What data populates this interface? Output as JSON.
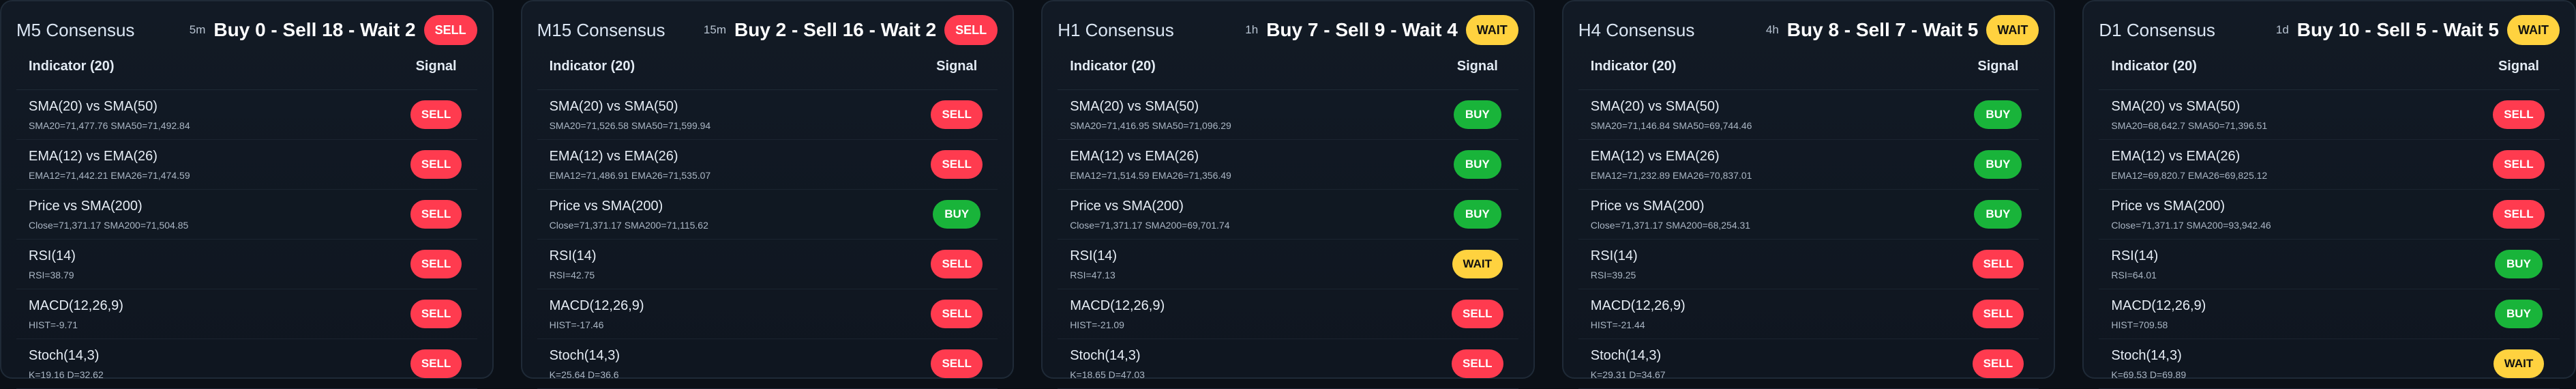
{
  "panels": [
    {
      "title": "M5 Consensus",
      "tf": "5m",
      "summary": "Buy 0 - Sell 18 - Wait 2",
      "badge": "SELL",
      "badge_type": "sell",
      "headers": {
        "indicator": "Indicator (20)",
        "signal": "Signal"
      },
      "rows": [
        {
          "name": "SMA(20) vs SMA(50)",
          "detail": "SMA20=71,477.76 SMA50=71,492.84",
          "signal": "SELL",
          "type": "sell"
        },
        {
          "name": "EMA(12) vs EMA(26)",
          "detail": "EMA12=71,442.21 EMA26=71,474.59",
          "signal": "SELL",
          "type": "sell"
        },
        {
          "name": "Price vs SMA(200)",
          "detail": "Close=71,371.17 SMA200=71,504.85",
          "signal": "SELL",
          "type": "sell"
        },
        {
          "name": "RSI(14)",
          "detail": "RSI=38.79",
          "signal": "SELL",
          "type": "sell"
        },
        {
          "name": "MACD(12,26,9)",
          "detail": "HIST=-9.71",
          "signal": "SELL",
          "type": "sell"
        },
        {
          "name": "Stoch(14,3)",
          "detail": "K=19.16 D=32.62",
          "signal": "SELL",
          "type": "sell"
        }
      ]
    },
    {
      "title": "M15 Consensus",
      "tf": "15m",
      "summary": "Buy 2 - Sell 16 - Wait 2",
      "badge": "SELL",
      "badge_type": "sell",
      "headers": {
        "indicator": "Indicator (20)",
        "signal": "Signal"
      },
      "rows": [
        {
          "name": "SMA(20) vs SMA(50)",
          "detail": "SMA20=71,526.58 SMA50=71,599.94",
          "signal": "SELL",
          "type": "sell"
        },
        {
          "name": "EMA(12) vs EMA(26)",
          "detail": "EMA12=71,486.91 EMA26=71,535.07",
          "signal": "SELL",
          "type": "sell"
        },
        {
          "name": "Price vs SMA(200)",
          "detail": "Close=71,371.17 SMA200=71,115.62",
          "signal": "BUY",
          "type": "buy"
        },
        {
          "name": "RSI(14)",
          "detail": "RSI=42.75",
          "signal": "SELL",
          "type": "sell"
        },
        {
          "name": "MACD(12,26,9)",
          "detail": "HIST=-17.46",
          "signal": "SELL",
          "type": "sell"
        },
        {
          "name": "Stoch(14,3)",
          "detail": "K=25.64 D=36.6",
          "signal": "SELL",
          "type": "sell"
        }
      ]
    },
    {
      "title": "H1 Consensus",
      "tf": "1h",
      "summary": "Buy 7 - Sell 9 - Wait 4",
      "badge": "WAIT",
      "badge_type": "wait",
      "headers": {
        "indicator": "Indicator (20)",
        "signal": "Signal"
      },
      "rows": [
        {
          "name": "SMA(20) vs SMA(50)",
          "detail": "SMA20=71,416.95 SMA50=71,096.29",
          "signal": "BUY",
          "type": "buy"
        },
        {
          "name": "EMA(12) vs EMA(26)",
          "detail": "EMA12=71,514.59 EMA26=71,356.49",
          "signal": "BUY",
          "type": "buy"
        },
        {
          "name": "Price vs SMA(200)",
          "detail": "Close=71,371.17 SMA200=69,701.74",
          "signal": "BUY",
          "type": "buy"
        },
        {
          "name": "RSI(14)",
          "detail": "RSI=47.13",
          "signal": "WAIT",
          "type": "wait"
        },
        {
          "name": "MACD(12,26,9)",
          "detail": "HIST=-21.09",
          "signal": "SELL",
          "type": "sell"
        },
        {
          "name": "Stoch(14,3)",
          "detail": "K=18.65 D=47.03",
          "signal": "SELL",
          "type": "sell"
        }
      ]
    },
    {
      "title": "H4 Consensus",
      "tf": "4h",
      "summary": "Buy 8 - Sell 7 - Wait 5",
      "badge": "WAIT",
      "badge_type": "wait",
      "headers": {
        "indicator": "Indicator (20)",
        "signal": "Signal"
      },
      "rows": [
        {
          "name": "SMA(20) vs SMA(50)",
          "detail": "SMA20=71,146.84 SMA50=69,744.46",
          "signal": "BUY",
          "type": "buy"
        },
        {
          "name": "EMA(12) vs EMA(26)",
          "detail": "EMA12=71,232.89 EMA26=70,837.01",
          "signal": "BUY",
          "type": "buy"
        },
        {
          "name": "Price vs SMA(200)",
          "detail": "Close=71,371.17 SMA200=68,254.31",
          "signal": "BUY",
          "type": "buy"
        },
        {
          "name": "RSI(14)",
          "detail": "RSI=39.25",
          "signal": "SELL",
          "type": "sell"
        },
        {
          "name": "MACD(12,26,9)",
          "detail": "HIST=-21.44",
          "signal": "SELL",
          "type": "sell"
        },
        {
          "name": "Stoch(14,3)",
          "detail": "K=29.31 D=34.67",
          "signal": "SELL",
          "type": "sell"
        }
      ]
    },
    {
      "title": "D1 Consensus",
      "tf": "1d",
      "summary": "Buy 10 - Sell 5 - Wait 5",
      "badge": "WAIT",
      "badge_type": "wait",
      "headers": {
        "indicator": "Indicator (20)",
        "signal": "Signal"
      },
      "rows": [
        {
          "name": "SMA(20) vs SMA(50)",
          "detail": "SMA20=68,642.7 SMA50=71,396.51",
          "signal": "SELL",
          "type": "sell"
        },
        {
          "name": "EMA(12) vs EMA(26)",
          "detail": "EMA12=69,820.7 EMA26=69,825.12",
          "signal": "SELL",
          "type": "sell"
        },
        {
          "name": "Price vs SMA(200)",
          "detail": "Close=71,371.17 SMA200=93,942.46",
          "signal": "SELL",
          "type": "sell"
        },
        {
          "name": "RSI(14)",
          "detail": "RSI=64.01",
          "signal": "BUY",
          "type": "buy"
        },
        {
          "name": "MACD(12,26,9)",
          "detail": "HIST=709.58",
          "signal": "BUY",
          "type": "buy"
        },
        {
          "name": "Stoch(14,3)",
          "detail": "K=69.53 D=69.89",
          "signal": "WAIT",
          "type": "wait"
        }
      ]
    }
  ]
}
